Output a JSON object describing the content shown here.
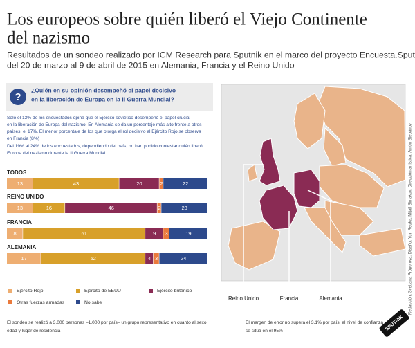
{
  "chart_data": {
    "type": "stacked-bar",
    "title": [
      "Los europeos sobre quién liberó el Viejo Continente",
      "del nazismo"
    ],
    "subtitle": [
      "Resultados de un sondeo realizado por ICM Research para Sputnik en el marco del proyecto Encuesta.Sputnik",
      "del 20 de marzo al 9 de abril de 2015 en Alemania, Francia y el Reino Unido"
    ],
    "categories": [
      "TODOS",
      "REINO UNIDO",
      "FRANCIA",
      "ALEMANIA"
    ],
    "series": [
      {
        "name": "Ejército Rojo",
        "color": "#eeae72",
        "values": [
          13,
          13,
          8,
          17
        ]
      },
      {
        "name": "Ejército de EEUU",
        "color": "#d8a02a",
        "values": [
          43,
          16,
          61,
          52
        ]
      },
      {
        "name": "Ejército británico",
        "color": "#8a2b54",
        "values": [
          20,
          46,
          9,
          4
        ]
      },
      {
        "name": "Otras fuerzas armadas",
        "color": "#ea7a3c",
        "values": [
          2,
          2,
          3,
          3
        ]
      },
      {
        "name": "No sabe",
        "color": "#2d4a8c",
        "values": [
          22,
          23,
          19,
          24
        ]
      }
    ]
  },
  "question": [
    "¿Quién en su opinión desempeñó el papel decisivo",
    "en la liberación de Europa en la II Guerra Mundial?"
  ],
  "question_mark": "?",
  "paragraph_1": [
    "Solo el 13% de los encuestados opina que el Ejército soviético desempeñó el papel crucial",
    "en la liberación de Europa del nazismo. En Alemania se da un porcentaje más alto frente a otros",
    "países, el 17%. El menor porcentaje de los que otorga el rol decisivo al Ejército Rojo se observa",
    "en Francia (8%)"
  ],
  "paragraph_2": [
    "Del 19% al 24% de los encuestados, dependiendo del país, no han podido contestar quién liberó",
    "Europa del nazismo durante la II Guerra Mundial"
  ],
  "map_labels": [
    "Reino Unido",
    "Francia",
    "Alemania"
  ],
  "footer_left": [
    "El sondeo se realizó a 3.000 personas –1.000 por país– un grupo representativo en cuanto al sexo,",
    "edad y lugar de residencia"
  ],
  "footer_right": [
    "El margen de error no supera el 3,1% por país; el nivel de confianza",
    "se sitúa en el 95%"
  ],
  "credits": "Redacción: Svetlana Próporova. Diseño: Yuri Reuka, Mijail Simakov. Dirección artística: Antón Stepánov",
  "logo": "SPUTNIK"
}
